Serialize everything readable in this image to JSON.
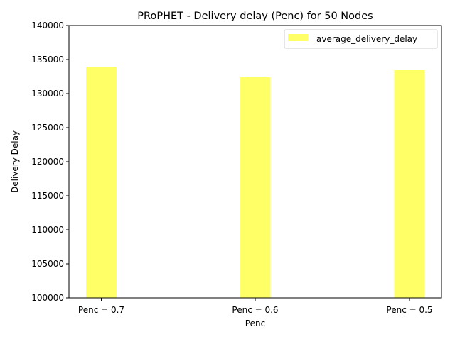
{
  "chart_data": {
    "type": "bar",
    "title": "PRoPHET - Delivery delay (Penc) for 50 Nodes",
    "xlabel": "Penc",
    "ylabel": "Delivery Delay",
    "categories": [
      "Penc = 0.7",
      "Penc = 0.6",
      "Penc = 0.5"
    ],
    "series": [
      {
        "name": "average_delivery_delay",
        "values": [
          133900,
          132400,
          133450
        ],
        "color": "#ffff66"
      }
    ],
    "ylim": [
      100000,
      140000
    ],
    "yticks": [
      100000,
      105000,
      110000,
      115000,
      120000,
      125000,
      130000,
      135000,
      140000
    ],
    "grid": false,
    "legend_position": "top-right"
  }
}
